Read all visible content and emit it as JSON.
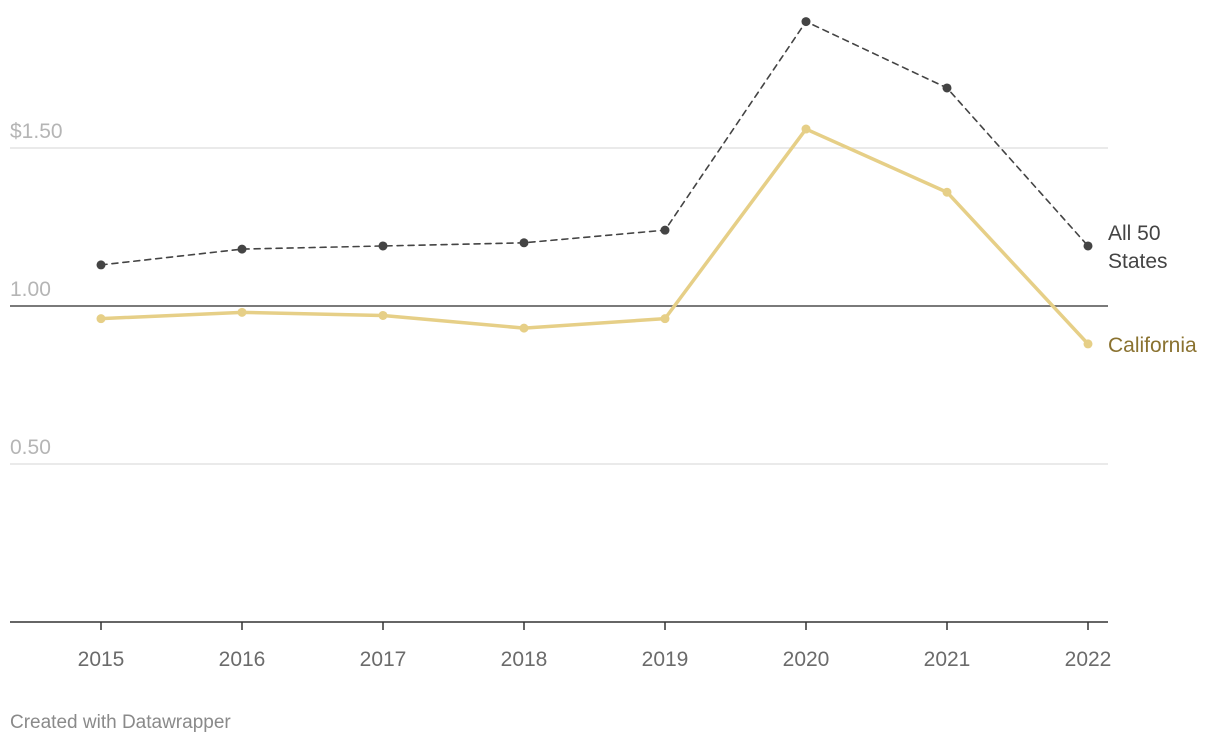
{
  "chart_data": {
    "type": "line",
    "x": [
      "2015",
      "2016",
      "2017",
      "2018",
      "2019",
      "2020",
      "2021",
      "2022"
    ],
    "ylim": [
      0,
      2.0
    ],
    "yticks": [
      {
        "value": 1.5,
        "label": "$1.50"
      },
      {
        "value": 1.0,
        "label": "1.00"
      },
      {
        "value": 0.5,
        "label": "0.50"
      }
    ],
    "reference_line": 1.0,
    "grid": true,
    "series": [
      {
        "name_lines": [
          "All 50",
          "States"
        ],
        "color": "#444444",
        "style": "dashed",
        "values": [
          1.13,
          1.18,
          1.19,
          1.2,
          1.24,
          1.9,
          1.69,
          1.19
        ]
      },
      {
        "name_lines": [
          "California"
        ],
        "color": "#e6cf87",
        "label_color": "#8a7230",
        "style": "solid",
        "values": [
          0.96,
          0.98,
          0.97,
          0.93,
          0.96,
          1.56,
          1.36,
          0.88
        ]
      }
    ]
  },
  "footer": "Created with Datawrapper"
}
